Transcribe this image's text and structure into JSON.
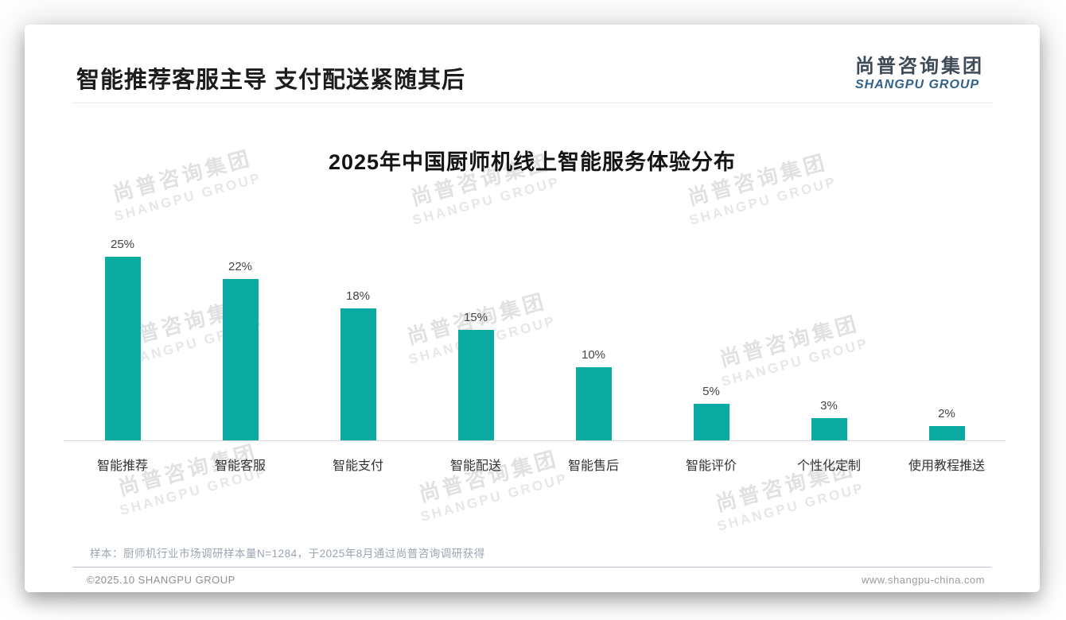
{
  "header": {
    "title": "智能推荐客服主导 支付配送紧随其后"
  },
  "logo": {
    "cn": "尚普咨询集团",
    "en": "SHANGPU GROUP"
  },
  "chart_data": {
    "type": "bar",
    "title": "2025年中国厨师机线上智能服务体验分布",
    "categories": [
      "智能推荐",
      "智能客服",
      "智能支付",
      "智能配送",
      "智能售后",
      "智能评价",
      "个性化定制",
      "使用教程推送"
    ],
    "values": [
      25,
      22,
      18,
      15,
      10,
      5,
      3,
      2
    ],
    "value_labels": [
      "25%",
      "22%",
      "18%",
      "15%",
      "10%",
      "5%",
      "3%",
      "2%"
    ],
    "unit": "%",
    "xlabel": "",
    "ylabel": "",
    "ylim": [
      0,
      25
    ],
    "grid": false,
    "legend": false,
    "bar_color": "#0baba1"
  },
  "note": {
    "text": "样本：厨师机行业市场调研样本量N=1284，于2025年8月通过尚普咨询调研获得"
  },
  "footer": {
    "left": "©2025.10 SHANGPU GROUP",
    "right": "www.shangpu-china.com"
  },
  "watermark": {
    "line1": "尚普咨询集团",
    "line2": "SHANGPU GROUP"
  },
  "colors": {
    "bar": "#0baba1",
    "logo_cn": "#3f4a57",
    "logo_en": "#31618f",
    "divider": "#b9c4d6"
  }
}
